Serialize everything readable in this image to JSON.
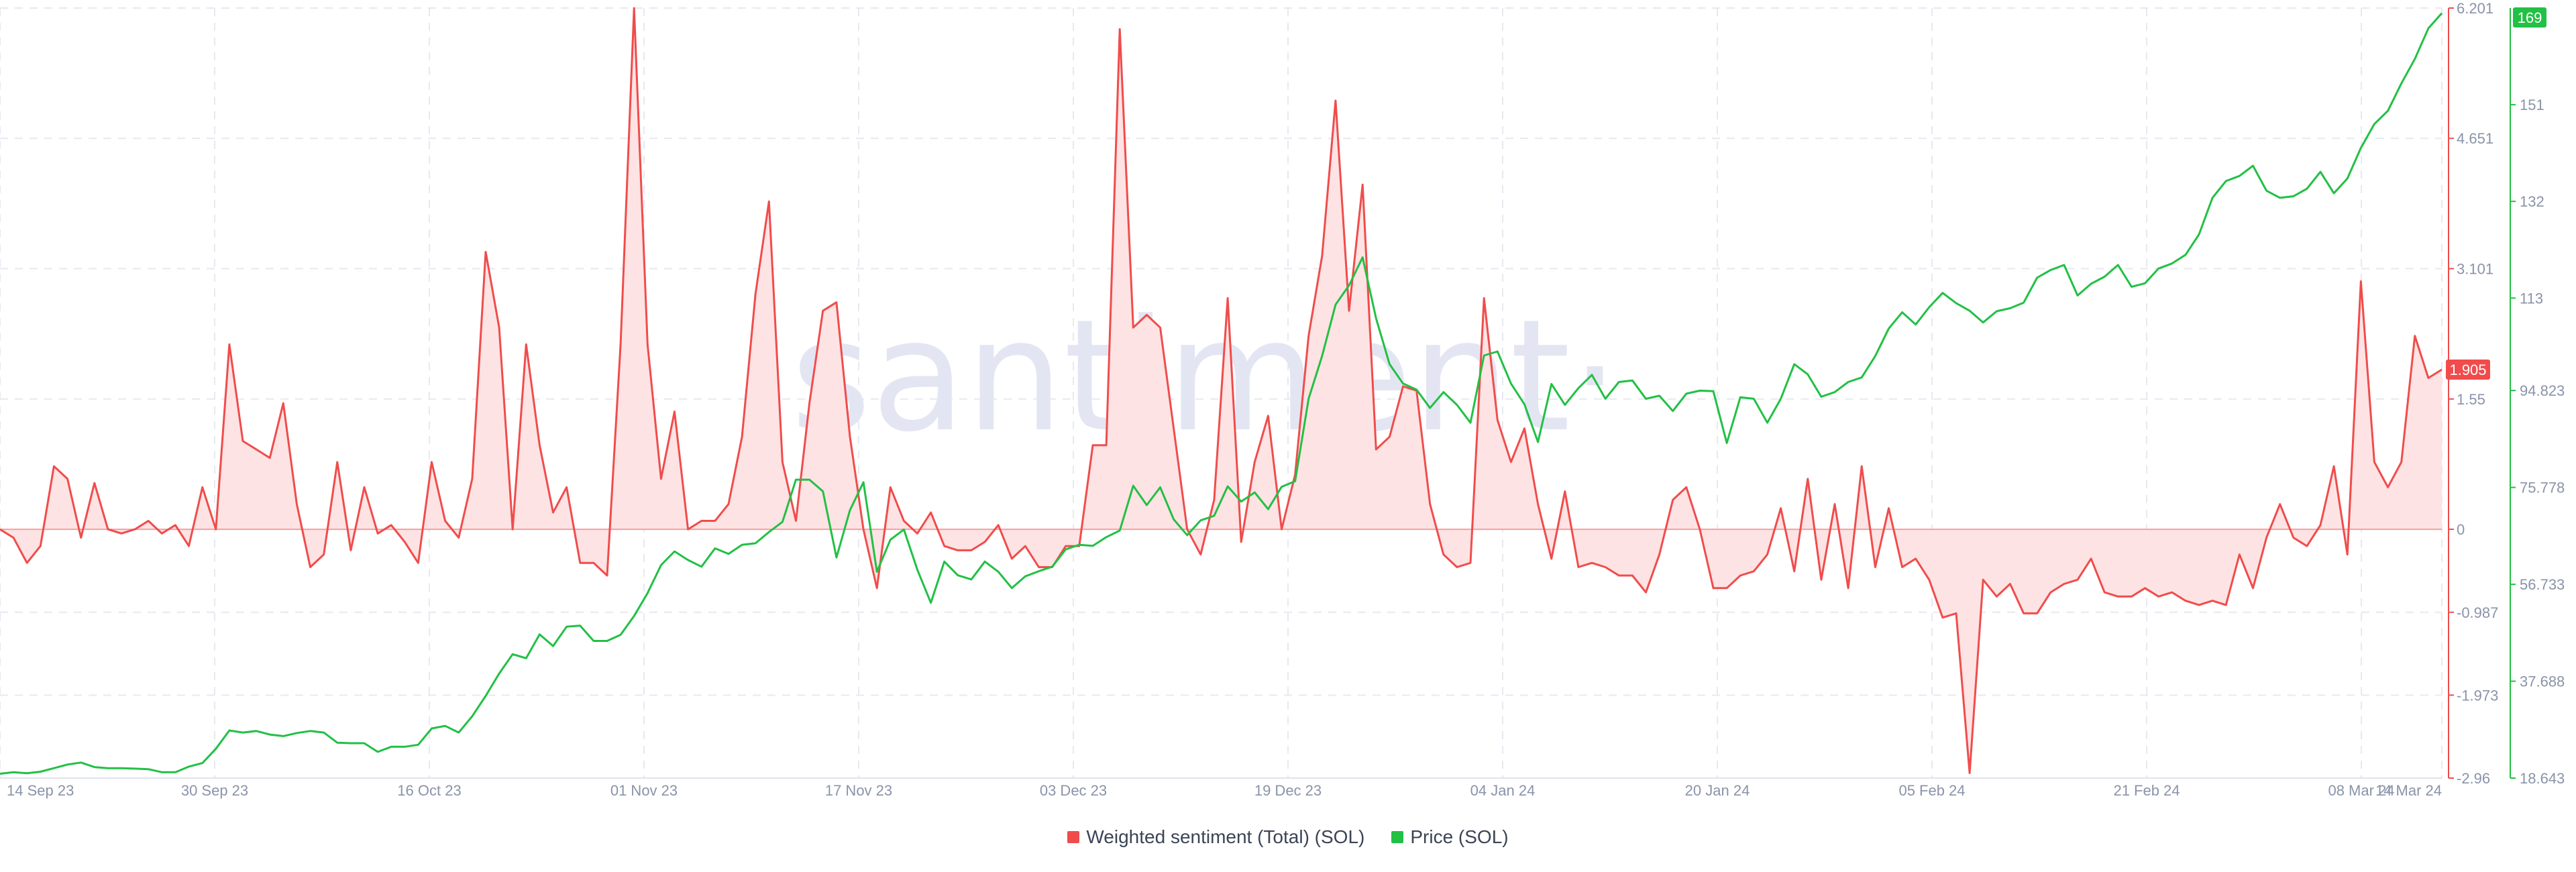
{
  "watermark": "·santiment·",
  "chart_data": {
    "type": "line",
    "x_ticks": [
      "14 Sep 23",
      "30 Sep 23",
      "16 Oct 23",
      "01 Nov 23",
      "17 Nov 23",
      "03 Dec 23",
      "19 Dec 23",
      "04 Jan 24",
      "20 Jan 24",
      "05 Feb 24",
      "21 Feb 24",
      "08 Mar 24",
      "14 Mar 24"
    ],
    "x_range": [
      "2023-09-14",
      "2024-03-14"
    ],
    "sentiment_axis": {
      "ylim": [
        -2.96,
        6.201
      ],
      "ticks": [
        "6.201",
        "4.651",
        "3.101",
        "1.55",
        "0",
        "-0.987",
        "-1.973",
        "-2.96"
      ]
    },
    "price_axis": {
      "ylim": [
        18.643,
        170
      ],
      "ticks": [
        "151",
        "132",
        "113",
        "94.823",
        "75.778",
        "56.733",
        "37.688",
        "18.643"
      ]
    },
    "badges": {
      "sentiment_last": "1.905",
      "price_last": "169"
    },
    "colors": {
      "sentiment": "#f04c4c",
      "sentiment_fill": "#fde3e3",
      "price": "#22c045",
      "grid": "#e6e9f0"
    },
    "series": [
      {
        "name": "Weighted sentiment (Total) (SOL)",
        "axis": "left",
        "values": [
          0,
          -0.1,
          -0.4,
          -0.2,
          0.75,
          0.6,
          -0.1,
          0.55,
          0,
          -0.05,
          0,
          0.1,
          -0.05,
          0.05,
          -0.2,
          0.5,
          0,
          2.2,
          1.05,
          0.95,
          0.85,
          1.5,
          0.3,
          -0.45,
          -0.3,
          0.8,
          -0.25,
          0.5,
          -0.05,
          0.05,
          -0.15,
          -0.4,
          0.8,
          0.1,
          -0.1,
          0.6,
          3.3,
          2.4,
          0,
          2.2,
          1,
          0.2,
          0.5,
          -0.4,
          -0.4,
          -0.55,
          2.2,
          6.2,
          2.2,
          0.6,
          1.4,
          0,
          0.1,
          0.1,
          0.3,
          1.1,
          2.8,
          3.9,
          0.8,
          0.1,
          1.5,
          2.6,
          2.7,
          1.1,
          0,
          -0.7,
          0.5,
          0.1,
          -0.05,
          0.2,
          -0.2,
          -0.25,
          -0.25,
          -0.15,
          0.05,
          -0.35,
          -0.2,
          -0.45,
          -0.45,
          -0.2,
          -0.2,
          1,
          1,
          5.95,
          2.4,
          2.55,
          2.4,
          1.2,
          0,
          -0.3,
          0.35,
          2.75,
          -0.15,
          0.8,
          1.35,
          0,
          0.65,
          2.3,
          3.25,
          5.1,
          2.6,
          4.1,
          0.95,
          1.1,
          1.7,
          1.65,
          0.3,
          -0.3,
          -0.45,
          -0.4,
          2.75,
          1.3,
          0.8,
          1.2,
          0.3,
          -0.35,
          0.45,
          -0.45,
          -0.4,
          -0.45,
          -0.55,
          -0.55,
          -0.75,
          -0.3,
          0.35,
          0.5,
          0,
          -0.7,
          -0.7,
          -0.55,
          -0.5,
          -0.3,
          0.25,
          -0.5,
          0.6,
          -0.6,
          0.3,
          -0.7,
          0.75,
          -0.45,
          0.25,
          -0.45,
          -0.35,
          -0.6,
          -1.05,
          -1.0,
          -2.9,
          -0.6,
          -0.8,
          -0.65,
          -1.0,
          -1.0,
          -0.75,
          -0.65,
          -0.6,
          -0.35,
          -0.75,
          -0.8,
          -0.8,
          -0.7,
          -0.8,
          -0.75,
          -0.85,
          -0.9,
          -0.85,
          -0.9,
          -0.3,
          -0.7,
          -0.1,
          0.3,
          -0.1,
          -0.2,
          0.05,
          0.75,
          -0.3,
          2.95,
          0.8,
          0.5,
          0.8,
          2.3,
          1.8,
          1.9
        ]
      },
      {
        "name": "Price (SOL)",
        "axis": "right",
        "values": [
          19.5,
          19.8,
          19.6,
          19.9,
          20.6,
          21.3,
          21.7,
          20.8,
          20.6,
          20.6,
          20.5,
          20.4,
          19.8,
          19.8,
          20.9,
          21.6,
          24.4,
          28,
          27.6,
          27.9,
          27.2,
          26.9,
          27.5,
          27.9,
          27.6,
          25.6,
          25.5,
          25.5,
          23.8,
          24.8,
          24.8,
          25.2,
          28.4,
          28.9,
          27.6,
          30.8,
          34.8,
          39.2,
          43,
          42.2,
          46.9,
          44.6,
          48.4,
          48.6,
          45.6,
          45.6,
          46.8,
          50.5,
          55,
          60.5,
          63.2,
          61.5,
          60.2,
          63.8,
          62.7,
          64.5,
          64.8,
          67,
          69,
          77.3,
          77.3,
          75,
          62,
          71.3,
          76.8,
          59.2,
          65.5,
          67.5,
          59.6,
          53.1,
          61.2,
          58.5,
          57.7,
          61.2,
          59.2,
          56,
          58.3,
          59.3,
          60.2,
          63.6,
          64.5,
          64.3,
          66,
          67.3,
          76.1,
          72.3,
          75.8,
          69.5,
          66.4,
          69.3,
          70.2,
          76,
          73,
          74.8,
          71.5,
          75.9,
          77,
          93.2,
          101.6,
          111.7,
          115.5,
          121,
          109,
          100,
          96.2,
          95,
          91.4,
          94.5,
          92,
          88.5,
          101.7,
          102.5,
          96.2,
          92.1,
          84.7,
          96.1,
          92,
          95.3,
          97.9,
          93.2,
          96.5,
          96.8,
          93.2,
          93.8,
          90.8,
          94.2,
          94.8,
          94.7,
          84.5,
          93.5,
          93.2,
          88.5,
          93.2,
          100,
          98,
          93.6,
          94.5,
          96.5,
          97.4,
          101.6,
          107,
          110.2,
          107.8,
          111.2,
          114,
          112,
          110.5,
          108.2,
          110.4,
          111,
          112.1,
          117,
          118.5,
          119.5,
          113.5,
          115.8,
          117.2,
          119.5,
          115.2,
          115.9,
          118.8,
          119.8,
          121.5,
          125.5,
          132.7,
          136,
          137,
          139,
          134.1,
          132.7,
          133,
          134.5,
          137.8,
          133.6,
          136.5,
          142.5,
          147.2,
          149.8,
          155.2,
          160,
          166,
          169
        ]
      }
    ]
  },
  "legend": {
    "sentiment_label": "Weighted sentiment (Total) (SOL)",
    "price_label": "Price (SOL)"
  }
}
